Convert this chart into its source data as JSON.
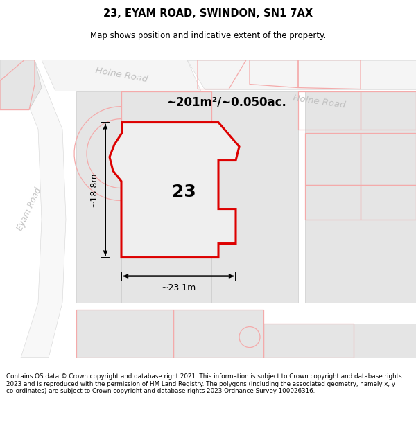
{
  "title": "23, EYAM ROAD, SWINDON, SN1 7AX",
  "subtitle": "Map shows position and indicative extent of the property.",
  "footer": "Contains OS data © Crown copyright and database right 2021. This information is subject to Crown copyright and database rights 2023 and is reproduced with the permission of HM Land Registry. The polygons (including the associated geometry, namely x, y co-ordinates) are subject to Crown copyright and database rights 2023 Ordnance Survey 100026316.",
  "area_label": "~201m²/~0.050ac.",
  "number_label": "23",
  "width_label": "~23.1m",
  "height_label": "~18.8m",
  "bg_color": "#ffffff",
  "map_bg": "#ffffff",
  "block_fill": "#e8e8e8",
  "road_fill": "#f0f0f0",
  "pink_line_color": "#f4aaaa",
  "red_line_color": "#dd0000",
  "road_text_color": "#c0c0c0",
  "dim_color": "#000000",
  "prop_fill": "#e8e8e8"
}
